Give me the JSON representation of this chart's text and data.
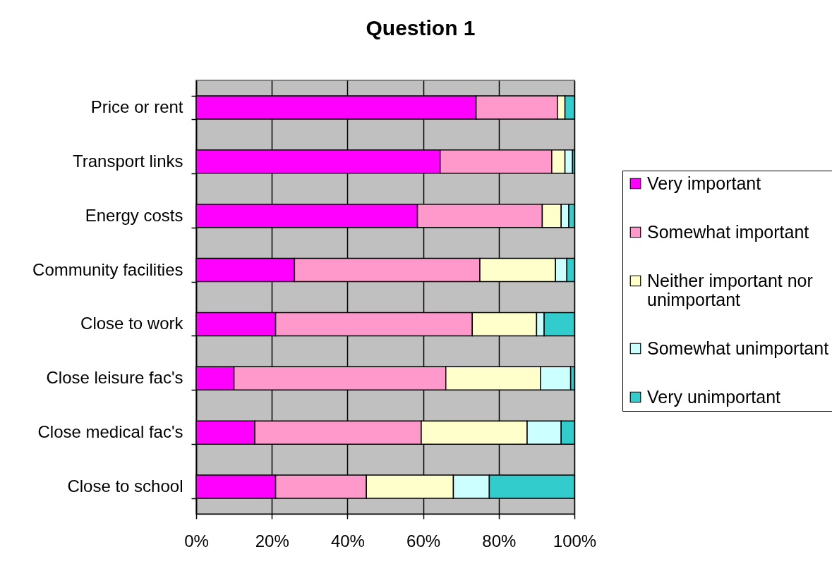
{
  "chart_data": {
    "type": "bar",
    "orientation": "horizontal",
    "stacked": true,
    "title": "Question 1",
    "categories": [
      "Price or rent",
      "Transport links",
      "Energy costs",
      "Community facilities",
      "Close to work",
      "Close leisure fac's",
      "Close medical fac's",
      "Close to school"
    ],
    "series": [
      {
        "name": "Very important",
        "color": "#ff00ff",
        "values": [
          74,
          64.5,
          58.5,
          26,
          21,
          10,
          15.5,
          21
        ]
      },
      {
        "name": "Somewhat important",
        "color": "#ff99cc",
        "values": [
          21.5,
          29.5,
          33,
          49,
          52,
          56,
          44,
          24
        ]
      },
      {
        "name": "Neither important nor unimportant",
        "color": "#ffffcc",
        "values": [
          2,
          3.5,
          5,
          20,
          17,
          25,
          28,
          23
        ]
      },
      {
        "name": "Somewhat unimportant",
        "color": "#ccffff",
        "values": [
          0,
          2,
          2,
          3,
          2,
          8,
          9,
          9.5
        ]
      },
      {
        "name": "Very unimportant",
        "color": "#33cccc",
        "values": [
          2.5,
          0.5,
          1.5,
          2,
          8,
          1,
          3.5,
          22.5
        ]
      }
    ],
    "xlim": [
      0,
      100
    ],
    "xticks": [
      {
        "value": 0,
        "label": "0%"
      },
      {
        "value": 20,
        "label": "20%"
      },
      {
        "value": 40,
        "label": "40%"
      },
      {
        "value": 60,
        "label": "60%"
      },
      {
        "value": 80,
        "label": "80%"
      },
      {
        "value": 100,
        "label": "100%"
      }
    ],
    "grid": "x",
    "legend": "right"
  }
}
